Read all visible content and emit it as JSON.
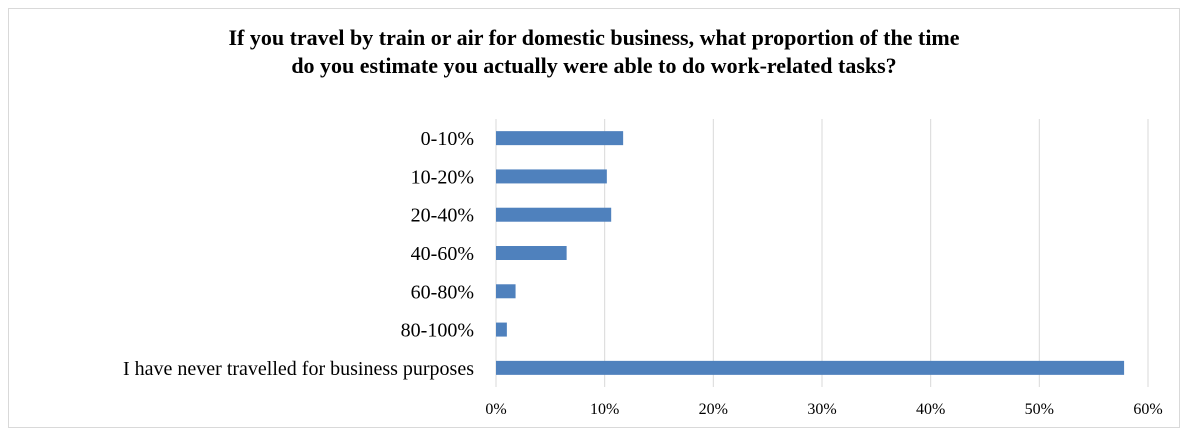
{
  "chart_data": {
    "type": "bar",
    "orientation": "horizontal",
    "title_lines": [
      "If you travel by train or air for domestic business, what proportion  of the time",
      "do you estimate you actually were able to do work-related tasks?"
    ],
    "categories": [
      "0-10%",
      "10-20%",
      "20-40%",
      "40-60%",
      "60-80%",
      "80-100%",
      "I have never travelled for business purposes"
    ],
    "values": [
      11.7,
      10.2,
      10.6,
      6.5,
      1.8,
      1.0,
      57.8
    ],
    "x_ticks": [
      "0%",
      "10%",
      "20%",
      "30%",
      "40%",
      "50%",
      "60%"
    ],
    "xlim": [
      0,
      60
    ],
    "grid": true,
    "legend": "none",
    "colors": {
      "bar": "#4f81bd",
      "grid": "#d9d9d9",
      "border": "#d9d9d9"
    }
  }
}
